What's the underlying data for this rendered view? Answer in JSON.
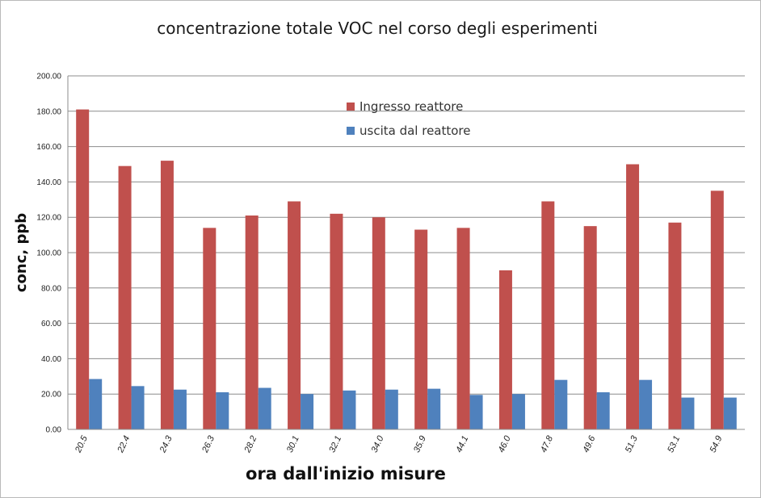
{
  "chart_data": {
    "type": "bar",
    "title": "concentrazione totale VOC nel corso degli esperimenti",
    "xlabel": "ora dall'inizio misure",
    "ylabel": "conc, ppb",
    "ylim": [
      0,
      200
    ],
    "y_ticks": [
      "0.00",
      "20.00",
      "40.00",
      "60.00",
      "80.00",
      "100.00",
      "120.00",
      "140.00",
      "160.00",
      "180.00",
      "200.00"
    ],
    "grid": true,
    "legend_position": "top-center",
    "categories": [
      "20.5",
      "22.4",
      "24.3",
      "26.3",
      "28.2",
      "30.1",
      "32.1",
      "34.0",
      "35.9",
      "44.1",
      "46.0",
      "47.8",
      "49.6",
      "51.3",
      "53.1",
      "54.9"
    ],
    "series": [
      {
        "name": "Ingresso reattore",
        "color": "#c0504d",
        "values": [
          181,
          149,
          152,
          114,
          121,
          129,
          122,
          120,
          113,
          114,
          90,
          129,
          115,
          150,
          117,
          135
        ]
      },
      {
        "name": "uscita dal reattore",
        "color": "#4f81bd",
        "values": [
          28.5,
          24.5,
          22.5,
          21,
          23.5,
          20,
          22,
          22.5,
          23,
          19.5,
          20,
          28,
          21,
          28,
          18,
          18
        ]
      }
    ]
  }
}
